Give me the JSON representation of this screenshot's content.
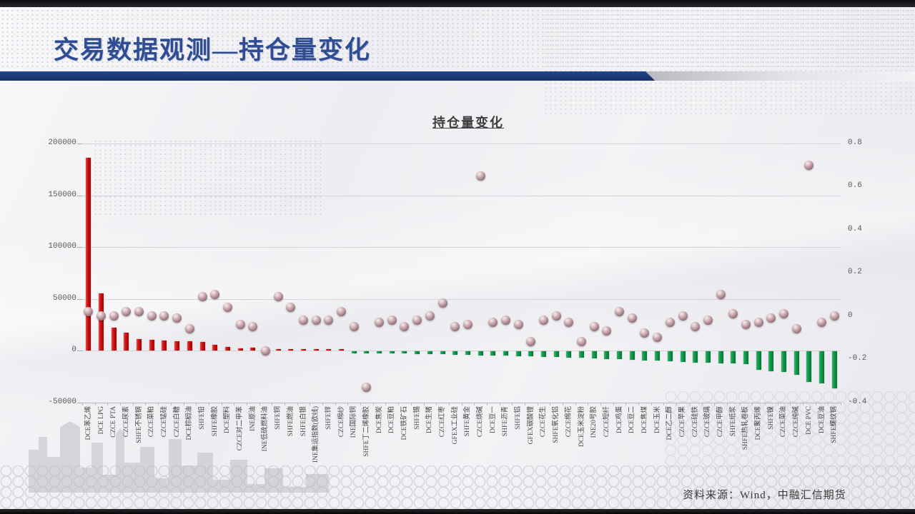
{
  "slide": {
    "title": "交易数据观测—持仓量变化",
    "footer_source": "资料来源：Wind，中融汇信期货"
  },
  "chart_data": {
    "type": "bar",
    "subtype": "combo-bar-scatter",
    "title": "持仓量变化",
    "grid": true,
    "legend": "none",
    "categories": [
      "DCE苯乙烯",
      "DCE LPG",
      "CZCE PTA",
      "CZCE尿素",
      "SHFE不锈钢",
      "CZCE菜粕",
      "CZCE锰硅",
      "CZCE白糖",
      "DCE棕榈油",
      "SHFE铅",
      "SHFE橡胶",
      "DCE塑料",
      "CZCE对二甲苯",
      "INE原油",
      "INE低硫燃料油",
      "SHFE铜",
      "SHFE燃油",
      "SHFE白银",
      "INE集运指数(欧线)",
      "SHFE锌",
      "CZCE棉纱",
      "INE国际铜",
      "SHFE丁二烯橡胶",
      "DCE焦炭",
      "DCE豆粕",
      "DCE铁矿石",
      "SHFE锡",
      "DCE生猪",
      "CZCE红枣",
      "GFEX工业硅",
      "SHFE黄金",
      "CZCE烧碱",
      "DCE豆一",
      "SHFE沥青",
      "SHFE铝",
      "GFEX碳酸锂",
      "CZCE花生",
      "SHFE氧化铝",
      "CZCE棉花",
      "DCE玉米淀粉",
      "INE20号胶",
      "CZCE短纤",
      "DCE鸡蛋",
      "DCE豆二",
      "DCE焦煤",
      "DCE玉米",
      "DCE乙二醇",
      "CZCE苹果",
      "CZCE硅铁",
      "CZCE玻璃",
      "CZCE甲醇",
      "SHFE纸浆",
      "SHFE热轧卷板",
      "DCE聚丙烯",
      "SHFE镍",
      "CZCE菜油",
      "CZCE纯碱",
      "DCE PVC",
      "DCE豆油",
      "SHFE螺纹钢"
    ],
    "bar_series": {
      "axis": "left",
      "color_positive": "#C90F0F",
      "color_negative": "#0F9647",
      "values": [
        186000,
        55000,
        22000,
        17000,
        11000,
        10500,
        9500,
        9000,
        8700,
        8100,
        5700,
        3500,
        2400,
        2500,
        1500,
        1200,
        1000,
        900,
        800,
        700,
        600,
        -1200,
        -1500,
        -1800,
        -2000,
        -2200,
        -2500,
        -2800,
        -3000,
        -3300,
        -3600,
        -3800,
        -4000,
        -4200,
        -4500,
        -4700,
        -5200,
        -5400,
        -5900,
        -6100,
        -6800,
        -7400,
        -7700,
        -8200,
        -8700,
        -9200,
        -9800,
        -10200,
        -10700,
        -11200,
        -11600,
        -11800,
        -12300,
        -17600,
        -19100,
        -20300,
        -22600,
        -29500,
        -30700,
        -36000
      ]
    },
    "scatter_series": {
      "axis": "right",
      "color": "#B2909A",
      "values": [
        0.02,
        0.0,
        0.0,
        0.02,
        0.02,
        0.0,
        0.0,
        -0.01,
        -0.06,
        0.09,
        0.1,
        0.04,
        -0.04,
        -0.05,
        -0.16,
        0.09,
        0.04,
        -0.02,
        -0.02,
        -0.02,
        0.02,
        -0.05,
        -0.33,
        -0.03,
        -0.02,
        -0.05,
        -0.02,
        0.0,
        0.06,
        -0.05,
        -0.04,
        0.65,
        -0.03,
        -0.02,
        -0.04,
        -0.12,
        -0.02,
        0.0,
        -0.03,
        -0.12,
        -0.05,
        -0.07,
        0.02,
        -0.01,
        -0.08,
        -0.1,
        -0.03,
        0.0,
        -0.05,
        -0.02,
        0.1,
        0.01,
        -0.04,
        -0.03,
        -0.01,
        0.01,
        -0.06,
        0.7,
        -0.03,
        0.0
      ]
    },
    "left_axis": {
      "min": -50000,
      "max": 200000,
      "ticks": [
        "200000",
        "150000",
        "100000",
        "50000",
        "0",
        "-50000"
      ],
      "tick_values": [
        200000,
        150000,
        100000,
        50000,
        0,
        -50000
      ]
    },
    "right_axis": {
      "min": -0.4,
      "max": 0.8,
      "ticks": [
        "0.8",
        "0.6",
        "0.4",
        "0.2",
        "0",
        "-0.2",
        "-0.4"
      ],
      "tick_values": [
        0.8,
        0.6,
        0.4,
        0.2,
        0,
        -0.2,
        -0.4
      ]
    }
  }
}
